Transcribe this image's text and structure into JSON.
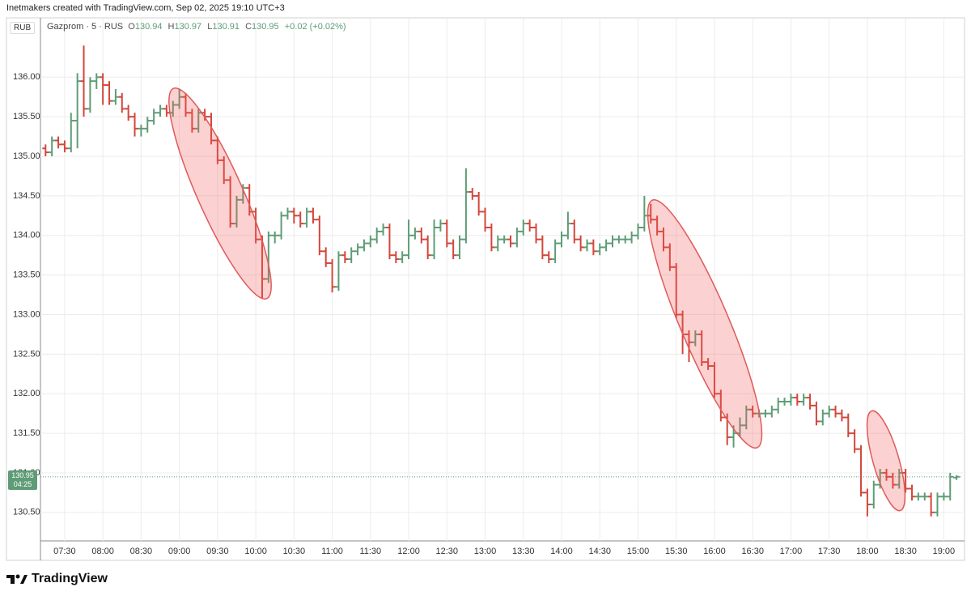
{
  "chart_data": {
    "type": "ohlc",
    "caption": "Inetmakers created with TradingView.com, Sep 02, 2025 19:10 UTC+3",
    "currency": "RUB",
    "title": "Gazprom · 5 · RUS",
    "legend": {
      "open_label": "O",
      "open": 130.94,
      "high_label": "H",
      "high": 130.97,
      "low_label": "L",
      "low": 130.91,
      "close_label": "C",
      "close": 130.95,
      "change": "+0.02 (+0.02%)"
    },
    "last_price": 130.95,
    "countdown": "04:25",
    "footer": "TradingView",
    "up_color": "#5e9c76",
    "down_color": "#d4463b",
    "grid": true,
    "xlim": [
      "07:11",
      "19:15"
    ],
    "ylim": [
      130.14,
      136.75
    ],
    "yticks": [
      {
        "value": 130.5,
        "label": "130.50"
      },
      {
        "value": 131,
        "label": "131.00"
      },
      {
        "value": 131.5,
        "label": "131.50"
      },
      {
        "value": 132,
        "label": "132.00"
      },
      {
        "value": 132.5,
        "label": "132.50"
      },
      {
        "value": 133,
        "label": "133.00"
      },
      {
        "value": 133.5,
        "label": "133.50"
      },
      {
        "value": 134,
        "label": "134.00"
      },
      {
        "value": 134.5,
        "label": "134.50"
      },
      {
        "value": 135,
        "label": "135.00"
      },
      {
        "value": 135.5,
        "label": "135.50"
      },
      {
        "value": 136,
        "label": "136.00"
      }
    ],
    "xticks": [
      "07:30",
      "08:00",
      "08:30",
      "09:00",
      "09:30",
      "10:00",
      "10:30",
      "11:00",
      "11:30",
      "12:00",
      "12:30",
      "13:00",
      "13:30",
      "14:00",
      "14:30",
      "15:00",
      "15:30",
      "16:00",
      "16:30",
      "17:00",
      "17:30",
      "18:00",
      "18:30",
      "19:00"
    ],
    "x": [
      "07:15",
      "07:20",
      "07:25",
      "07:30",
      "07:35",
      "07:40",
      "07:45",
      "07:50",
      "07:55",
      "08:00",
      "08:05",
      "08:10",
      "08:15",
      "08:20",
      "08:25",
      "08:30",
      "08:35",
      "08:40",
      "08:45",
      "08:50",
      "08:55",
      "09:00",
      "09:05",
      "09:10",
      "09:15",
      "09:20",
      "09:25",
      "09:30",
      "09:35",
      "09:40",
      "09:45",
      "09:50",
      "09:55",
      "10:00",
      "10:05",
      "10:10",
      "10:15",
      "10:20",
      "10:25",
      "10:30",
      "10:35",
      "10:40",
      "10:45",
      "10:50",
      "10:55",
      "11:00",
      "11:05",
      "11:10",
      "11:15",
      "11:20",
      "11:25",
      "11:30",
      "11:35",
      "11:40",
      "11:45",
      "11:50",
      "11:55",
      "12:00",
      "12:05",
      "12:10",
      "12:15",
      "12:20",
      "12:25",
      "12:30",
      "12:35",
      "12:40",
      "12:45",
      "12:50",
      "12:55",
      "13:00",
      "13:05",
      "13:10",
      "13:15",
      "13:20",
      "13:25",
      "13:30",
      "13:35",
      "13:40",
      "13:45",
      "13:50",
      "13:55",
      "14:00",
      "14:05",
      "14:10",
      "14:15",
      "14:20",
      "14:25",
      "14:30",
      "14:35",
      "14:40",
      "14:45",
      "14:50",
      "14:55",
      "15:00",
      "15:05",
      "15:10",
      "15:15",
      "15:20",
      "15:25",
      "15:30",
      "15:35",
      "15:40",
      "15:45",
      "15:50",
      "15:55",
      "16:00",
      "16:05",
      "16:10",
      "16:15",
      "16:20",
      "16:25",
      "16:30",
      "16:35",
      "16:40",
      "16:45",
      "16:50",
      "16:55",
      "17:00",
      "17:05",
      "17:10",
      "17:15",
      "17:20",
      "17:25",
      "17:30",
      "17:35",
      "17:40",
      "17:45",
      "17:50",
      "17:55",
      "18:00",
      "18:05",
      "18:10",
      "18:15",
      "18:20",
      "18:25",
      "18:30",
      "18:35",
      "18:40",
      "18:45",
      "18:50",
      "18:55",
      "19:00",
      "19:05",
      "19:10"
    ],
    "ohlc": [
      [
        135.1,
        135.15,
        135.0,
        135.05
      ],
      [
        135.05,
        135.25,
        135.0,
        135.2
      ],
      [
        135.2,
        135.25,
        135.1,
        135.15
      ],
      [
        135.15,
        135.2,
        135.05,
        135.1
      ],
      [
        135.1,
        135.55,
        135.05,
        135.45
      ],
      [
        135.45,
        136.05,
        135.1,
        135.95
      ],
      [
        135.95,
        136.4,
        135.5,
        135.6
      ],
      [
        135.6,
        136.0,
        135.55,
        135.95
      ],
      [
        135.95,
        136.05,
        135.85,
        136.0
      ],
      [
        136.0,
        136.05,
        135.65,
        135.9
      ],
      [
        135.9,
        135.95,
        135.65,
        135.7
      ],
      [
        135.7,
        135.85,
        135.65,
        135.75
      ],
      [
        135.75,
        135.8,
        135.55,
        135.6
      ],
      [
        135.6,
        135.65,
        135.45,
        135.5
      ],
      [
        135.5,
        135.55,
        135.25,
        135.35
      ],
      [
        135.35,
        135.4,
        135.25,
        135.35
      ],
      [
        135.35,
        135.5,
        135.3,
        135.45
      ],
      [
        135.45,
        135.6,
        135.4,
        135.55
      ],
      [
        135.55,
        135.65,
        135.5,
        135.6
      ],
      [
        135.6,
        135.65,
        135.5,
        135.55
      ],
      [
        135.55,
        135.7,
        135.5,
        135.65
      ],
      [
        135.65,
        135.85,
        135.6,
        135.75
      ],
      [
        135.75,
        135.8,
        135.5,
        135.55
      ],
      [
        135.55,
        135.6,
        135.3,
        135.35
      ],
      [
        135.35,
        135.6,
        135.3,
        135.55
      ],
      [
        135.55,
        135.6,
        135.45,
        135.5
      ],
      [
        135.5,
        135.55,
        135.15,
        135.2
      ],
      [
        135.2,
        135.25,
        134.9,
        134.95
      ],
      [
        134.95,
        135.0,
        134.65,
        134.7
      ],
      [
        134.7,
        134.75,
        134.1,
        134.15
      ],
      [
        134.15,
        134.5,
        134.1,
        134.45
      ],
      [
        134.45,
        134.65,
        134.4,
        134.6
      ],
      [
        134.6,
        134.65,
        134.25,
        134.3
      ],
      [
        134.3,
        134.35,
        133.9,
        133.95
      ],
      [
        133.95,
        134.0,
        133.2,
        133.45
      ],
      [
        133.45,
        134.05,
        133.4,
        134.0
      ],
      [
        134.0,
        134.05,
        133.9,
        134.0
      ],
      [
        134.0,
        134.3,
        133.95,
        134.25
      ],
      [
        134.25,
        134.35,
        134.2,
        134.3
      ],
      [
        134.3,
        134.35,
        134.15,
        134.25
      ],
      [
        134.25,
        134.3,
        134.1,
        134.15
      ],
      [
        134.15,
        134.35,
        134.1,
        134.3
      ],
      [
        134.3,
        134.35,
        134.15,
        134.2
      ],
      [
        134.2,
        134.25,
        133.75,
        133.8
      ],
      [
        133.8,
        133.85,
        133.6,
        133.65
      ],
      [
        133.65,
        133.7,
        133.28,
        133.35
      ],
      [
        133.35,
        133.8,
        133.3,
        133.75
      ],
      [
        133.75,
        133.8,
        133.65,
        133.7
      ],
      [
        133.7,
        133.85,
        133.65,
        133.8
      ],
      [
        133.8,
        133.9,
        133.75,
        133.85
      ],
      [
        133.85,
        133.95,
        133.8,
        133.9
      ],
      [
        133.9,
        134.0,
        133.85,
        133.95
      ],
      [
        133.95,
        134.1,
        133.9,
        134.05
      ],
      [
        134.05,
        134.15,
        134.0,
        134.1
      ],
      [
        134.1,
        134.15,
        133.7,
        133.75
      ],
      [
        133.75,
        133.8,
        133.65,
        133.7
      ],
      [
        133.7,
        133.8,
        133.65,
        133.75
      ],
      [
        133.75,
        134.2,
        133.7,
        134.0
      ],
      [
        134.0,
        134.1,
        133.95,
        134.05
      ],
      [
        134.05,
        134.1,
        133.9,
        133.95
      ],
      [
        133.95,
        134.0,
        133.7,
        133.75
      ],
      [
        133.75,
        134.2,
        133.7,
        134.1
      ],
      [
        134.1,
        134.2,
        134.05,
        134.15
      ],
      [
        134.15,
        134.2,
        133.85,
        133.9
      ],
      [
        133.9,
        133.95,
        133.7,
        133.75
      ],
      [
        133.75,
        134.0,
        133.7,
        133.95
      ],
      [
        133.95,
        134.85,
        133.9,
        134.55
      ],
      [
        134.55,
        134.6,
        134.45,
        134.5
      ],
      [
        134.5,
        134.55,
        134.25,
        134.3
      ],
      [
        134.3,
        134.35,
        134.05,
        134.1
      ],
      [
        134.1,
        134.15,
        133.8,
        133.85
      ],
      [
        133.85,
        134.0,
        133.8,
        133.95
      ],
      [
        133.95,
        134.0,
        133.9,
        133.95
      ],
      [
        133.95,
        134.0,
        133.85,
        133.9
      ],
      [
        133.9,
        134.1,
        133.85,
        134.05
      ],
      [
        134.05,
        134.2,
        134.0,
        134.15
      ],
      [
        134.15,
        134.2,
        134.05,
        134.1
      ],
      [
        134.1,
        134.15,
        133.9,
        133.95
      ],
      [
        133.95,
        134.0,
        133.7,
        133.75
      ],
      [
        133.75,
        133.8,
        133.65,
        133.7
      ],
      [
        133.7,
        133.95,
        133.65,
        133.9
      ],
      [
        133.9,
        134.05,
        133.85,
        134.0
      ],
      [
        134.0,
        134.3,
        133.95,
        134.15
      ],
      [
        134.15,
        134.2,
        133.9,
        133.95
      ],
      [
        133.95,
        134.0,
        133.8,
        133.85
      ],
      [
        133.85,
        133.95,
        133.8,
        133.9
      ],
      [
        133.9,
        133.95,
        133.75,
        133.8
      ],
      [
        133.8,
        133.9,
        133.75,
        133.85
      ],
      [
        133.85,
        133.95,
        133.8,
        133.9
      ],
      [
        133.9,
        134.0,
        133.85,
        133.95
      ],
      [
        133.95,
        134.0,
        133.9,
        133.95
      ],
      [
        133.95,
        134.0,
        133.9,
        133.95
      ],
      [
        133.95,
        134.05,
        133.9,
        134.0
      ],
      [
        134.0,
        134.15,
        133.95,
        134.1
      ],
      [
        134.1,
        134.5,
        134.05,
        134.25
      ],
      [
        134.25,
        134.4,
        134.15,
        134.2
      ],
      [
        134.2,
        134.25,
        134.0,
        134.05
      ],
      [
        134.05,
        134.1,
        133.8,
        133.85
      ],
      [
        133.85,
        133.9,
        133.55,
        133.6
      ],
      [
        133.6,
        133.65,
        132.95,
        133.0
      ],
      [
        133.0,
        133.05,
        132.5,
        132.75
      ],
      [
        132.75,
        132.8,
        132.4,
        132.65
      ],
      [
        132.65,
        132.8,
        132.6,
        132.75
      ],
      [
        132.75,
        132.8,
        132.35,
        132.4
      ],
      [
        132.4,
        132.45,
        132.3,
        132.35
      ],
      [
        132.35,
        132.4,
        131.95,
        132.0
      ],
      [
        132.0,
        132.05,
        131.65,
        131.7
      ],
      [
        131.7,
        131.75,
        131.35,
        131.45
      ],
      [
        131.45,
        131.6,
        131.32,
        131.5
      ],
      [
        131.5,
        131.7,
        131.45,
        131.6
      ],
      [
        131.6,
        131.85,
        131.55,
        131.8
      ],
      [
        131.8,
        131.85,
        131.7,
        131.75
      ],
      [
        131.75,
        131.8,
        131.7,
        131.75
      ],
      [
        131.75,
        131.8,
        131.7,
        131.75
      ],
      [
        131.75,
        131.85,
        131.7,
        131.8
      ],
      [
        131.8,
        131.95,
        131.75,
        131.9
      ],
      [
        131.9,
        131.95,
        131.85,
        131.9
      ],
      [
        131.9,
        132.0,
        131.85,
        131.95
      ],
      [
        131.95,
        132.0,
        131.85,
        131.9
      ],
      [
        131.9,
        132.0,
        131.85,
        131.95
      ],
      [
        131.95,
        132.0,
        131.8,
        131.85
      ],
      [
        131.85,
        131.9,
        131.6,
        131.65
      ],
      [
        131.65,
        131.8,
        131.6,
        131.75
      ],
      [
        131.75,
        131.85,
        131.7,
        131.8
      ],
      [
        131.8,
        131.85,
        131.7,
        131.75
      ],
      [
        131.75,
        131.8,
        131.65,
        131.7
      ],
      [
        131.7,
        131.75,
        131.45,
        131.5
      ],
      [
        131.5,
        131.55,
        131.25,
        131.3
      ],
      [
        131.3,
        131.35,
        130.7,
        130.75
      ],
      [
        130.75,
        130.8,
        130.45,
        130.6
      ],
      [
        130.6,
        130.9,
        130.55,
        130.85
      ],
      [
        130.85,
        131.05,
        130.8,
        131.0
      ],
      [
        131.0,
        131.05,
        130.9,
        130.95
      ],
      [
        130.95,
        131.0,
        130.8,
        130.85
      ],
      [
        130.85,
        131.05,
        130.8,
        131.0
      ],
      [
        131.0,
        131.05,
        130.75,
        130.8
      ],
      [
        130.8,
        130.85,
        130.65,
        130.7
      ],
      [
        130.7,
        130.75,
        130.65,
        130.7
      ],
      [
        130.7,
        130.75,
        130.65,
        130.7
      ],
      [
        130.7,
        130.75,
        130.45,
        130.5
      ],
      [
        130.5,
        130.75,
        130.45,
        130.7
      ],
      [
        130.7,
        130.75,
        130.65,
        130.7
      ],
      [
        130.7,
        131.0,
        130.65,
        130.95
      ],
      [
        130.94,
        130.97,
        130.91,
        130.95
      ]
    ]
  }
}
